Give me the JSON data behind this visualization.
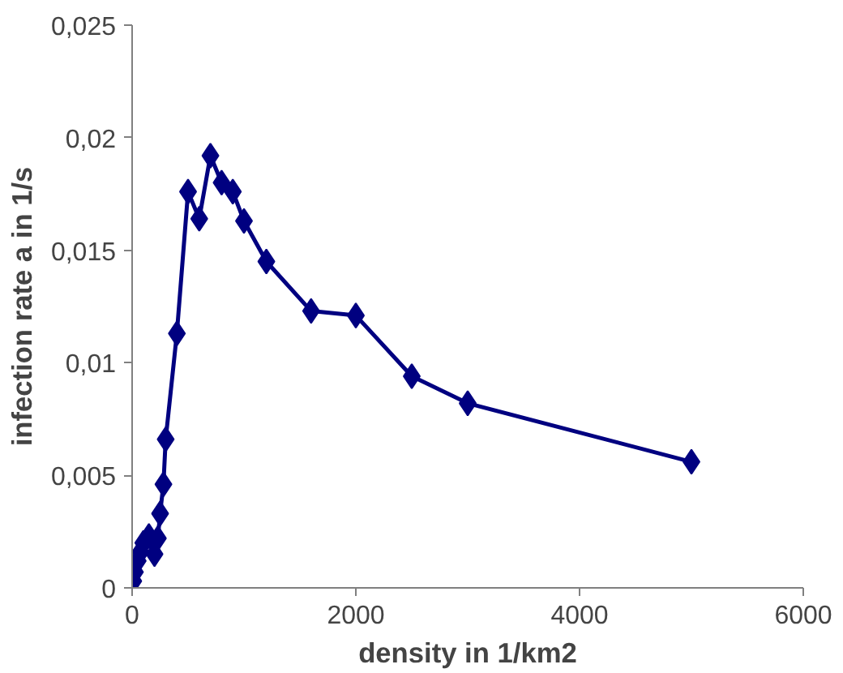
{
  "chart_data": {
    "type": "line",
    "xlabel": "density in 1/km2",
    "ylabel": "infection rate a in 1/s",
    "x": [
      10,
      25,
      50,
      75,
      100,
      150,
      200,
      230,
      250,
      280,
      300,
      400,
      500,
      600,
      700,
      800,
      900,
      1000,
      1200,
      1600,
      2000,
      2500,
      3000,
      5000
    ],
    "series": [
      {
        "color": "#000080",
        "values": [
          0.0003,
          0.0007,
          0.0012,
          0.0016,
          0.002,
          0.0023,
          0.0015,
          0.0022,
          0.0033,
          0.0046,
          0.0066,
          0.0113,
          0.0176,
          0.0164,
          0.0192,
          0.018,
          0.0176,
          0.0163,
          0.0145,
          0.0123,
          0.0121,
          0.0094,
          0.0082,
          0.0056
        ]
      }
    ],
    "xlim": [
      0,
      6000
    ],
    "xticks": [
      0,
      2000,
      4000,
      6000
    ],
    "ylim": [
      0,
      0.025
    ],
    "yticks": [
      0,
      {
        "value": 0.005,
        "label": "0,005"
      },
      {
        "value": 0.01,
        "label": "0,01"
      },
      {
        "value": 0.015,
        "label": "0,015"
      },
      {
        "value": 0.02,
        "label": "0,02"
      },
      {
        "value": 0.025,
        "label": "0,025"
      }
    ],
    "grid": false,
    "marker": "diamond",
    "line_style": "solid"
  }
}
